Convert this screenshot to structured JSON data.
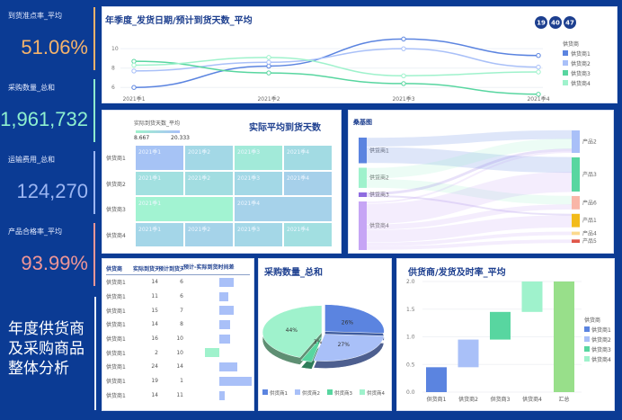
{
  "kpis": [
    {
      "label": "到货准点率_平均",
      "value": "51.06%",
      "color": "#f5b36b"
    },
    {
      "label": "采购数量_总和",
      "value": "1,961,732",
      "color": "#8ef0cf"
    },
    {
      "label": "运输费用_总和",
      "value": "124,270",
      "color": "#9cb6f2"
    },
    {
      "label": "产品合格率_平均",
      "value": "93.99%",
      "color": "#f09696"
    }
  ],
  "dashboard_title": [
    "年度供货商",
    "及采购商品",
    "整体分析"
  ],
  "series_colors": [
    "#5b84e0",
    "#a9c0f8",
    "#58d6a0",
    "#9ff2cc"
  ],
  "suppliers": [
    "供货商1",
    "供货商2",
    "供货商3",
    "供货商4"
  ],
  "line_chart": {
    "title": "年季度_发货日期/预计到货天数_平均",
    "badges": [
      "19",
      "40",
      "47"
    ],
    "legend_title": "供货商",
    "chart_data": {
      "type": "line",
      "categories": [
        "2021季1",
        "2021季2",
        "2021季3",
        "2021季4"
      ],
      "yticks": [
        6,
        8,
        10
      ],
      "ylim": [
        5,
        11.5
      ],
      "series": [
        {
          "name": "供货商1",
          "values": [
            6,
            8.2,
            11,
            9.3
          ]
        },
        {
          "name": "供货商2",
          "values": [
            7.7,
            8.6,
            10,
            8.1
          ]
        },
        {
          "name": "供货商3",
          "values": [
            8.7,
            7.5,
            6.4,
            5.3
          ]
        },
        {
          "name": "供货商4",
          "values": [
            8.3,
            9.1,
            7.2,
            7.6
          ]
        }
      ]
    }
  },
  "heatmap": {
    "title": "实际平均到货天数",
    "legend_title": "实际到货天数_平均",
    "min": "8.667",
    "max": "20.333",
    "rows": [
      {
        "label": "供货商1",
        "cells": [
          {
            "t": "2021季1",
            "c": "#a6c3f5",
            "w": 1
          },
          {
            "t": "2021季2",
            "c": "#a3d8e6",
            "w": 1
          },
          {
            "t": "2021季3",
            "c": "#a2ead9",
            "w": 1
          },
          {
            "t": "2021季4",
            "c": "#a2dbe3",
            "w": 1
          }
        ]
      },
      {
        "label": "供货商2",
        "cells": [
          {
            "t": "2021季1",
            "c": "#a2e0e0",
            "w": 1
          },
          {
            "t": "2021季2",
            "c": "#a2dde1",
            "w": 1
          },
          {
            "t": "2021季3",
            "c": "#a3d8e6",
            "w": 1
          },
          {
            "t": "2021季4",
            "c": "#a6d0ea",
            "w": 1
          }
        ]
      },
      {
        "label": "供货商3",
        "cells": [
          {
            "t": "2021季1",
            "c": "#a2f3d2",
            "w": 2
          },
          {
            "t": "2021季4",
            "c": "#a6d2ea",
            "w": 2
          }
        ]
      },
      {
        "label": "供货商4",
        "cells": [
          {
            "t": "2021季1",
            "c": "#a4d6e8",
            "w": 1
          },
          {
            "t": "2021季2",
            "c": "#a5d3e9",
            "w": 1
          },
          {
            "t": "2021季3",
            "c": "#a4d7e7",
            "w": 1
          },
          {
            "t": "2021季4",
            "c": "#a2dfe1",
            "w": 1
          }
        ]
      }
    ]
  },
  "sankey": {
    "title": "桑基图",
    "sources": [
      "供货商1",
      "供货商2",
      "供货商3",
      "供货商4"
    ],
    "targets": [
      "产品2",
      "产品3",
      "产品6",
      "产品1",
      "产品4",
      "产品5"
    ],
    "source_colors": [
      "#5b84e0",
      "#9ff2cc",
      "#8e6be0",
      "#c6a5f5"
    ],
    "target_colors": [
      "#a9c0f8",
      "#58d6a0",
      "#f9b6a8",
      "#f2bb1a",
      "#fbd98e",
      "#e0574a"
    ],
    "links": [
      [
        "供货商1",
        "产品2",
        10
      ],
      [
        "供货商1",
        "产品3",
        18
      ],
      [
        "供货商2",
        "产品2",
        12
      ],
      [
        "供货商2",
        "产品6",
        10
      ],
      [
        "供货商3",
        "产品2",
        3
      ],
      [
        "供货商3",
        "产品1",
        2
      ],
      [
        "供货商4",
        "产品2",
        2
      ],
      [
        "供货商4",
        "产品3",
        23
      ],
      [
        "供货商4",
        "产品6",
        6
      ],
      [
        "供货商4",
        "产品1",
        14
      ],
      [
        "供货商4",
        "产品4",
        4
      ],
      [
        "供货商4",
        "产品5",
        4
      ]
    ]
  },
  "table": {
    "headers": [
      "供货商",
      "实际到货天",
      "预计到货天数",
      "预计-实际到货时间差"
    ],
    "rows": [
      [
        "供货商1",
        "14",
        "6",
        8
      ],
      [
        "供货商1",
        "11",
        "6",
        5
      ],
      [
        "供货商1",
        "15",
        "7",
        8
      ],
      [
        "供货商1",
        "14",
        "8",
        6
      ],
      [
        "供货商1",
        "16",
        "10",
        6
      ],
      [
        "供货商1",
        "2",
        "10",
        -8
      ],
      [
        "供货商1",
        "24",
        "14",
        10
      ],
      [
        "供货商1",
        "19",
        "1",
        18
      ],
      [
        "供货商1",
        "14",
        "11",
        3
      ]
    ]
  },
  "pie": {
    "title": "采购数量_总和",
    "chart_data": {
      "type": "pie",
      "labels": [
        "供货商1",
        "供货商2",
        "供货商3",
        "供货商4"
      ],
      "values": [
        26,
        27,
        3,
        44
      ],
      "data_labels": [
        "26%",
        "27%",
        "3%",
        "44%"
      ]
    }
  },
  "waterfall": {
    "title": "供货商/发货及时率_平均",
    "legend_title": "供货商",
    "total_label": "汇总",
    "total_color": "#98df8a",
    "chart_data": {
      "type": "bar",
      "categories": [
        "供货商1",
        "供货商2",
        "供货商3",
        "供货商4",
        "汇总"
      ],
      "values": [
        0.45,
        0.5,
        0.5,
        0.55,
        2.0
      ],
      "yticks": [
        "0.0",
        "0.5",
        "1.0",
        "1.5",
        "2.0"
      ],
      "ylim": [
        0,
        2
      ]
    }
  }
}
